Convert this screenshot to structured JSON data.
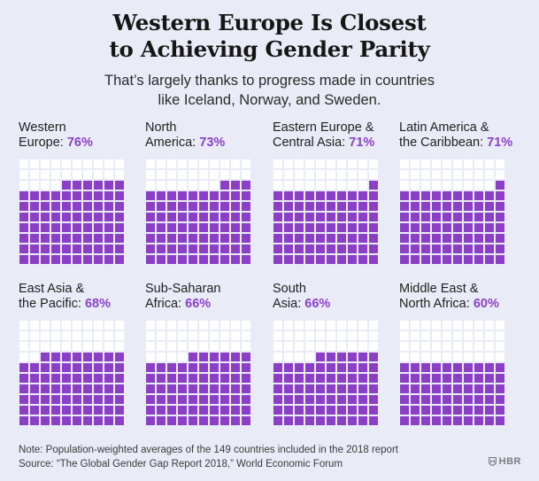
{
  "header": {
    "title_line1": "Western Europe Is Closest",
    "title_line2": "to Achieving Gender Parity",
    "subtitle_line1": "That’s largely thanks to progress made in countries",
    "subtitle_line2": "like Iceland, Norway, and Sweden."
  },
  "chart_data": {
    "type": "waffle",
    "unit": "%",
    "grid": [
      10,
      10
    ],
    "colors": {
      "filled": "#8b3fc6",
      "empty": "#ffffff",
      "background": "#e9ecf6"
    },
    "panels": [
      {
        "line1": "Western",
        "line2_prefix": "Europe: ",
        "value_label": "76%",
        "value": 76
      },
      {
        "line1": "North",
        "line2_prefix": "America: ",
        "value_label": "73%",
        "value": 73
      },
      {
        "line1": "Eastern Europe &",
        "line2_prefix": "Central Asia: ",
        "value_label": "71%",
        "value": 71
      },
      {
        "line1": "Latin America &",
        "line2_prefix": "the Caribbean: ",
        "value_label": "71%",
        "value": 71
      },
      {
        "line1": "East Asia &",
        "line2_prefix": "the Pacific: ",
        "value_label": "68%",
        "value": 68
      },
      {
        "line1": "Sub-Saharan",
        "line2_prefix": "Africa: ",
        "value_label": "66%",
        "value": 66
      },
      {
        "line1": "South",
        "line2_prefix": "Asia: ",
        "value_label": "66%",
        "value": 66
      },
      {
        "line1": "Middle East &",
        "line2_prefix": "North Africa: ",
        "value_label": "60%",
        "value": 60
      }
    ]
  },
  "footer": {
    "note": "Note: Population-weighted averages of the 149 countries included in the 2018 report",
    "source": "Source: “The Global Gender Gap Report 2018,” World Economic Forum",
    "brand": "HBR",
    "brand_icon": "shield-icon"
  }
}
